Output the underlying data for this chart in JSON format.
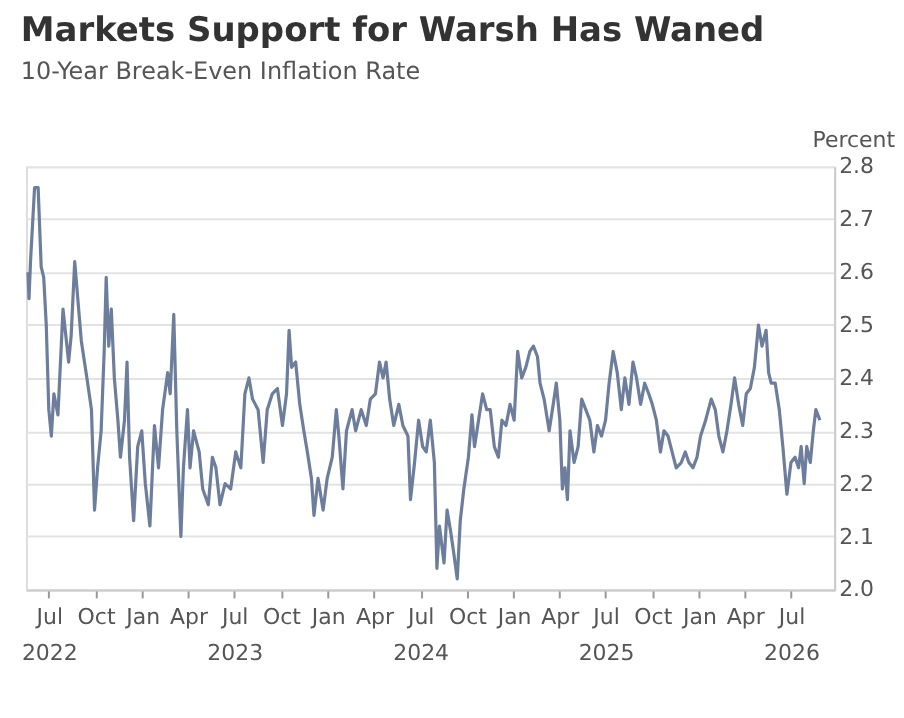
{
  "chart_data": {
    "type": "line",
    "title": "Markets Support for Warsh Has Waned",
    "subtitle": "10-Year Break-Even Inflation Rate",
    "ylabel": "Percent",
    "x": [
      "2022-06-04",
      "2022-06-06",
      "2022-06-09",
      "2022-06-17",
      "2022-06-24",
      "2022-06-30",
      "2022-07-05",
      "2022-07-10",
      "2022-07-15",
      "2022-07-20",
      "2022-07-25",
      "2022-08-02",
      "2022-08-12",
      "2022-08-23",
      "2022-08-28",
      "2022-09-04",
      "2022-09-17",
      "2022-09-28",
      "2022-10-07",
      "2022-10-13",
      "2022-10-19",
      "2022-10-26",
      "2022-11-01",
      "2022-11-05",
      "2022-11-10",
      "2022-11-15",
      "2022-11-21",
      "2022-11-28",
      "2022-12-03",
      "2022-12-11",
      "2022-12-16",
      "2022-12-21",
      "2022-12-29",
      "2023-01-06",
      "2023-01-14",
      "2023-01-21",
      "2023-01-30",
      "2023-02-08",
      "2023-02-16",
      "2023-02-24",
      "2023-03-06",
      "2023-03-11",
      "2023-03-18",
      "2023-03-24",
      "2023-04-01",
      "2023-04-06",
      "2023-04-14",
      "2023-04-19",
      "2023-04-26",
      "2023-05-07",
      "2023-05-14",
      "2023-05-25",
      "2023-06-02",
      "2023-06-09",
      "2023-06-17",
      "2023-06-27",
      "2023-07-08",
      "2023-07-18",
      "2023-07-28",
      "2023-08-05",
      "2023-08-13",
      "2023-08-20",
      "2023-08-31",
      "2023-09-10",
      "2023-09-18",
      "2023-09-28",
      "2023-10-08",
      "2023-10-18",
      "2023-10-26",
      "2023-10-31",
      "2023-11-05",
      "2023-11-13",
      "2023-11-21",
      "2023-11-29",
      "2023-12-06",
      "2023-12-14",
      "2023-12-19",
      "2023-12-27",
      "2024-01-06",
      "2024-01-14",
      "2024-01-24",
      "2024-02-01",
      "2024-02-06",
      "2024-02-14",
      "2024-02-21",
      "2024-03-03",
      "2024-03-10",
      "2024-03-21",
      "2024-03-31",
      "2024-04-08",
      "2024-04-18",
      "2024-04-26",
      "2024-05-03",
      "2024-05-09",
      "2024-05-16",
      "2024-05-24",
      "2024-06-03",
      "2024-06-11",
      "2024-06-21",
      "2024-06-26",
      "2024-07-04",
      "2024-07-12",
      "2024-07-20",
      "2024-07-27",
      "2024-08-04",
      "2024-08-12",
      "2024-08-17",
      "2024-08-22",
      "2024-08-31",
      "2024-09-06",
      "2024-09-13",
      "2024-09-19",
      "2024-09-26",
      "2024-10-02",
      "2024-10-09",
      "2024-10-18",
      "2024-10-25",
      "2024-10-30",
      "2024-11-07",
      "2024-11-15",
      "2024-11-23",
      "2024-11-30",
      "2024-12-08",
      "2024-12-16",
      "2024-12-23",
      "2024-12-31",
      "2025-01-08",
      "2025-01-16",
      "2025-01-23",
      "2025-01-31",
      "2025-02-08",
      "2025-02-16",
      "2025-02-23",
      "2025-03-03",
      "2025-03-08",
      "2025-03-16",
      "2025-03-26",
      "2025-04-03",
      "2025-04-09",
      "2025-04-16",
      "2025-04-21",
      "2025-04-26",
      "2025-05-01",
      "2025-05-06",
      "2025-05-14",
      "2025-05-22",
      "2025-05-29",
      "2025-06-06",
      "2025-06-14",
      "2025-06-22",
      "2025-06-29",
      "2025-07-07",
      "2025-07-15",
      "2025-07-22",
      "2025-07-30",
      "2025-08-07",
      "2025-08-15",
      "2025-08-22",
      "2025-08-30",
      "2025-09-07",
      "2025-09-14",
      "2025-09-22",
      "2025-09-30",
      "2025-10-08",
      "2025-10-15",
      "2025-10-23",
      "2025-10-31",
      "2025-11-07",
      "2025-11-15",
      "2025-11-23",
      "2025-12-01",
      "2025-12-11",
      "2025-12-19",
      "2025-12-26",
      "2026-01-03",
      "2026-01-11",
      "2026-01-18",
      "2026-01-28",
      "2026-02-08",
      "2026-02-16",
      "2026-02-23",
      "2026-03-03",
      "2026-03-11",
      "2026-03-19",
      "2026-03-26",
      "2026-04-03",
      "2026-04-11",
      "2026-04-18",
      "2026-04-26",
      "2026-05-04",
      "2026-05-12",
      "2026-05-19",
      "2026-05-27",
      "2026-06-01",
      "2026-06-06",
      "2026-06-14",
      "2026-06-22",
      "2026-06-29",
      "2026-07-07",
      "2026-07-15",
      "2026-07-23",
      "2026-07-30",
      "2026-08-04",
      "2026-08-10",
      "2026-08-15",
      "2026-08-22",
      "2026-08-28",
      "2026-09-02",
      "2026-09-10"
    ],
    "series": [
      {
        "color": "#6d7d9c",
        "values": [
          2.6,
          2.55,
          2.62,
          2.76,
          2.76,
          2.61,
          2.59,
          2.5,
          2.34,
          2.29,
          2.37,
          2.33,
          2.53,
          2.43,
          2.48,
          2.62,
          2.47,
          2.4,
          2.34,
          2.15,
          2.23,
          2.3,
          2.45,
          2.59,
          2.46,
          2.53,
          2.4,
          2.32,
          2.25,
          2.32,
          2.43,
          2.25,
          2.13,
          2.27,
          2.3,
          2.2,
          2.12,
          2.31,
          2.23,
          2.34,
          2.41,
          2.37,
          2.52,
          2.3,
          2.1,
          2.23,
          2.34,
          2.23,
          2.3,
          2.26,
          2.19,
          2.16,
          2.25,
          2.23,
          2.16,
          2.2,
          2.19,
          2.26,
          2.23,
          2.37,
          2.4,
          2.36,
          2.34,
          2.24,
          2.34,
          2.37,
          2.38,
          2.31,
          2.37,
          2.49,
          2.42,
          2.43,
          2.35,
          2.3,
          2.26,
          2.21,
          2.14,
          2.21,
          2.15,
          2.21,
          2.25,
          2.34,
          2.29,
          2.19,
          2.3,
          2.34,
          2.3,
          2.34,
          2.31,
          2.36,
          2.37,
          2.43,
          2.4,
          2.43,
          2.36,
          2.31,
          2.35,
          2.31,
          2.29,
          2.17,
          2.24,
          2.32,
          2.27,
          2.26,
          2.32,
          2.24,
          2.04,
          2.12,
          2.05,
          2.15,
          2.11,
          2.07,
          2.02,
          2.13,
          2.19,
          2.25,
          2.33,
          2.27,
          2.32,
          2.37,
          2.34,
          2.34,
          2.27,
          2.25,
          2.32,
          2.31,
          2.35,
          2.32,
          2.45,
          2.4,
          2.42,
          2.45,
          2.46,
          2.44,
          2.39,
          2.36,
          2.3,
          2.35,
          2.39,
          2.32,
          2.19,
          2.23,
          2.17,
          2.3,
          2.24,
          2.27,
          2.36,
          2.34,
          2.32,
          2.26,
          2.31,
          2.29,
          2.32,
          2.39,
          2.45,
          2.41,
          2.34,
          2.4,
          2.35,
          2.43,
          2.4,
          2.35,
          2.39,
          2.37,
          2.35,
          2.32,
          2.26,
          2.3,
          2.29,
          2.26,
          2.23,
          2.24,
          2.26,
          2.24,
          2.23,
          2.25,
          2.29,
          2.32,
          2.36,
          2.34,
          2.29,
          2.26,
          2.3,
          2.35,
          2.4,
          2.35,
          2.31,
          2.37,
          2.38,
          2.42,
          2.5,
          2.46,
          2.49,
          2.41,
          2.39,
          2.39,
          2.34,
          2.27,
          2.18,
          2.24,
          2.25,
          2.23,
          2.27,
          2.2,
          2.27,
          2.24,
          2.3,
          2.34,
          2.32
        ]
      }
    ],
    "xlim": [
      "2022-05-31",
      "2026-10-08"
    ],
    "xticks": [
      {
        "value": "2022-07-15",
        "label": "Jul\n2022"
      },
      {
        "value": "2022-10-15",
        "label": "Oct"
      },
      {
        "value": "2023-01-15",
        "label": "Jan"
      },
      {
        "value": "2023-04-15",
        "label": "Apr"
      },
      {
        "value": "2023-07-15",
        "label": "Jul\n2023"
      },
      {
        "value": "2023-10-15",
        "label": "Oct"
      },
      {
        "value": "2024-01-15",
        "label": "Jan"
      },
      {
        "value": "2024-04-15",
        "label": "Apr"
      },
      {
        "value": "2024-07-15",
        "label": "Jul\n2024"
      },
      {
        "value": "2024-10-15",
        "label": "Oct"
      },
      {
        "value": "2025-01-15",
        "label": "Jan"
      },
      {
        "value": "2025-04-15",
        "label": "Apr"
      },
      {
        "value": "2025-07-15",
        "label": "Jul\n2025"
      },
      {
        "value": "2025-10-15",
        "label": "Oct"
      },
      {
        "value": "2026-01-15",
        "label": "Jan"
      },
      {
        "value": "2026-04-15",
        "label": "Apr"
      },
      {
        "value": "2026-07-15",
        "label": "Jul\n2026"
      }
    ],
    "ylim": [
      2.0,
      2.8
    ],
    "yticks": [
      {
        "value": 2.0,
        "label": "2.0"
      },
      {
        "value": 2.1,
        "label": "2.1"
      },
      {
        "value": 2.2,
        "label": "2.2"
      },
      {
        "value": 2.3,
        "label": "2.3"
      },
      {
        "value": 2.4,
        "label": "2.4"
      },
      {
        "value": 2.5,
        "label": "2.5"
      },
      {
        "value": 2.6,
        "label": "2.6"
      },
      {
        "value": 2.7,
        "label": "2.7"
      },
      {
        "value": 2.8,
        "label": "2.8"
      }
    ],
    "grid": "y"
  }
}
